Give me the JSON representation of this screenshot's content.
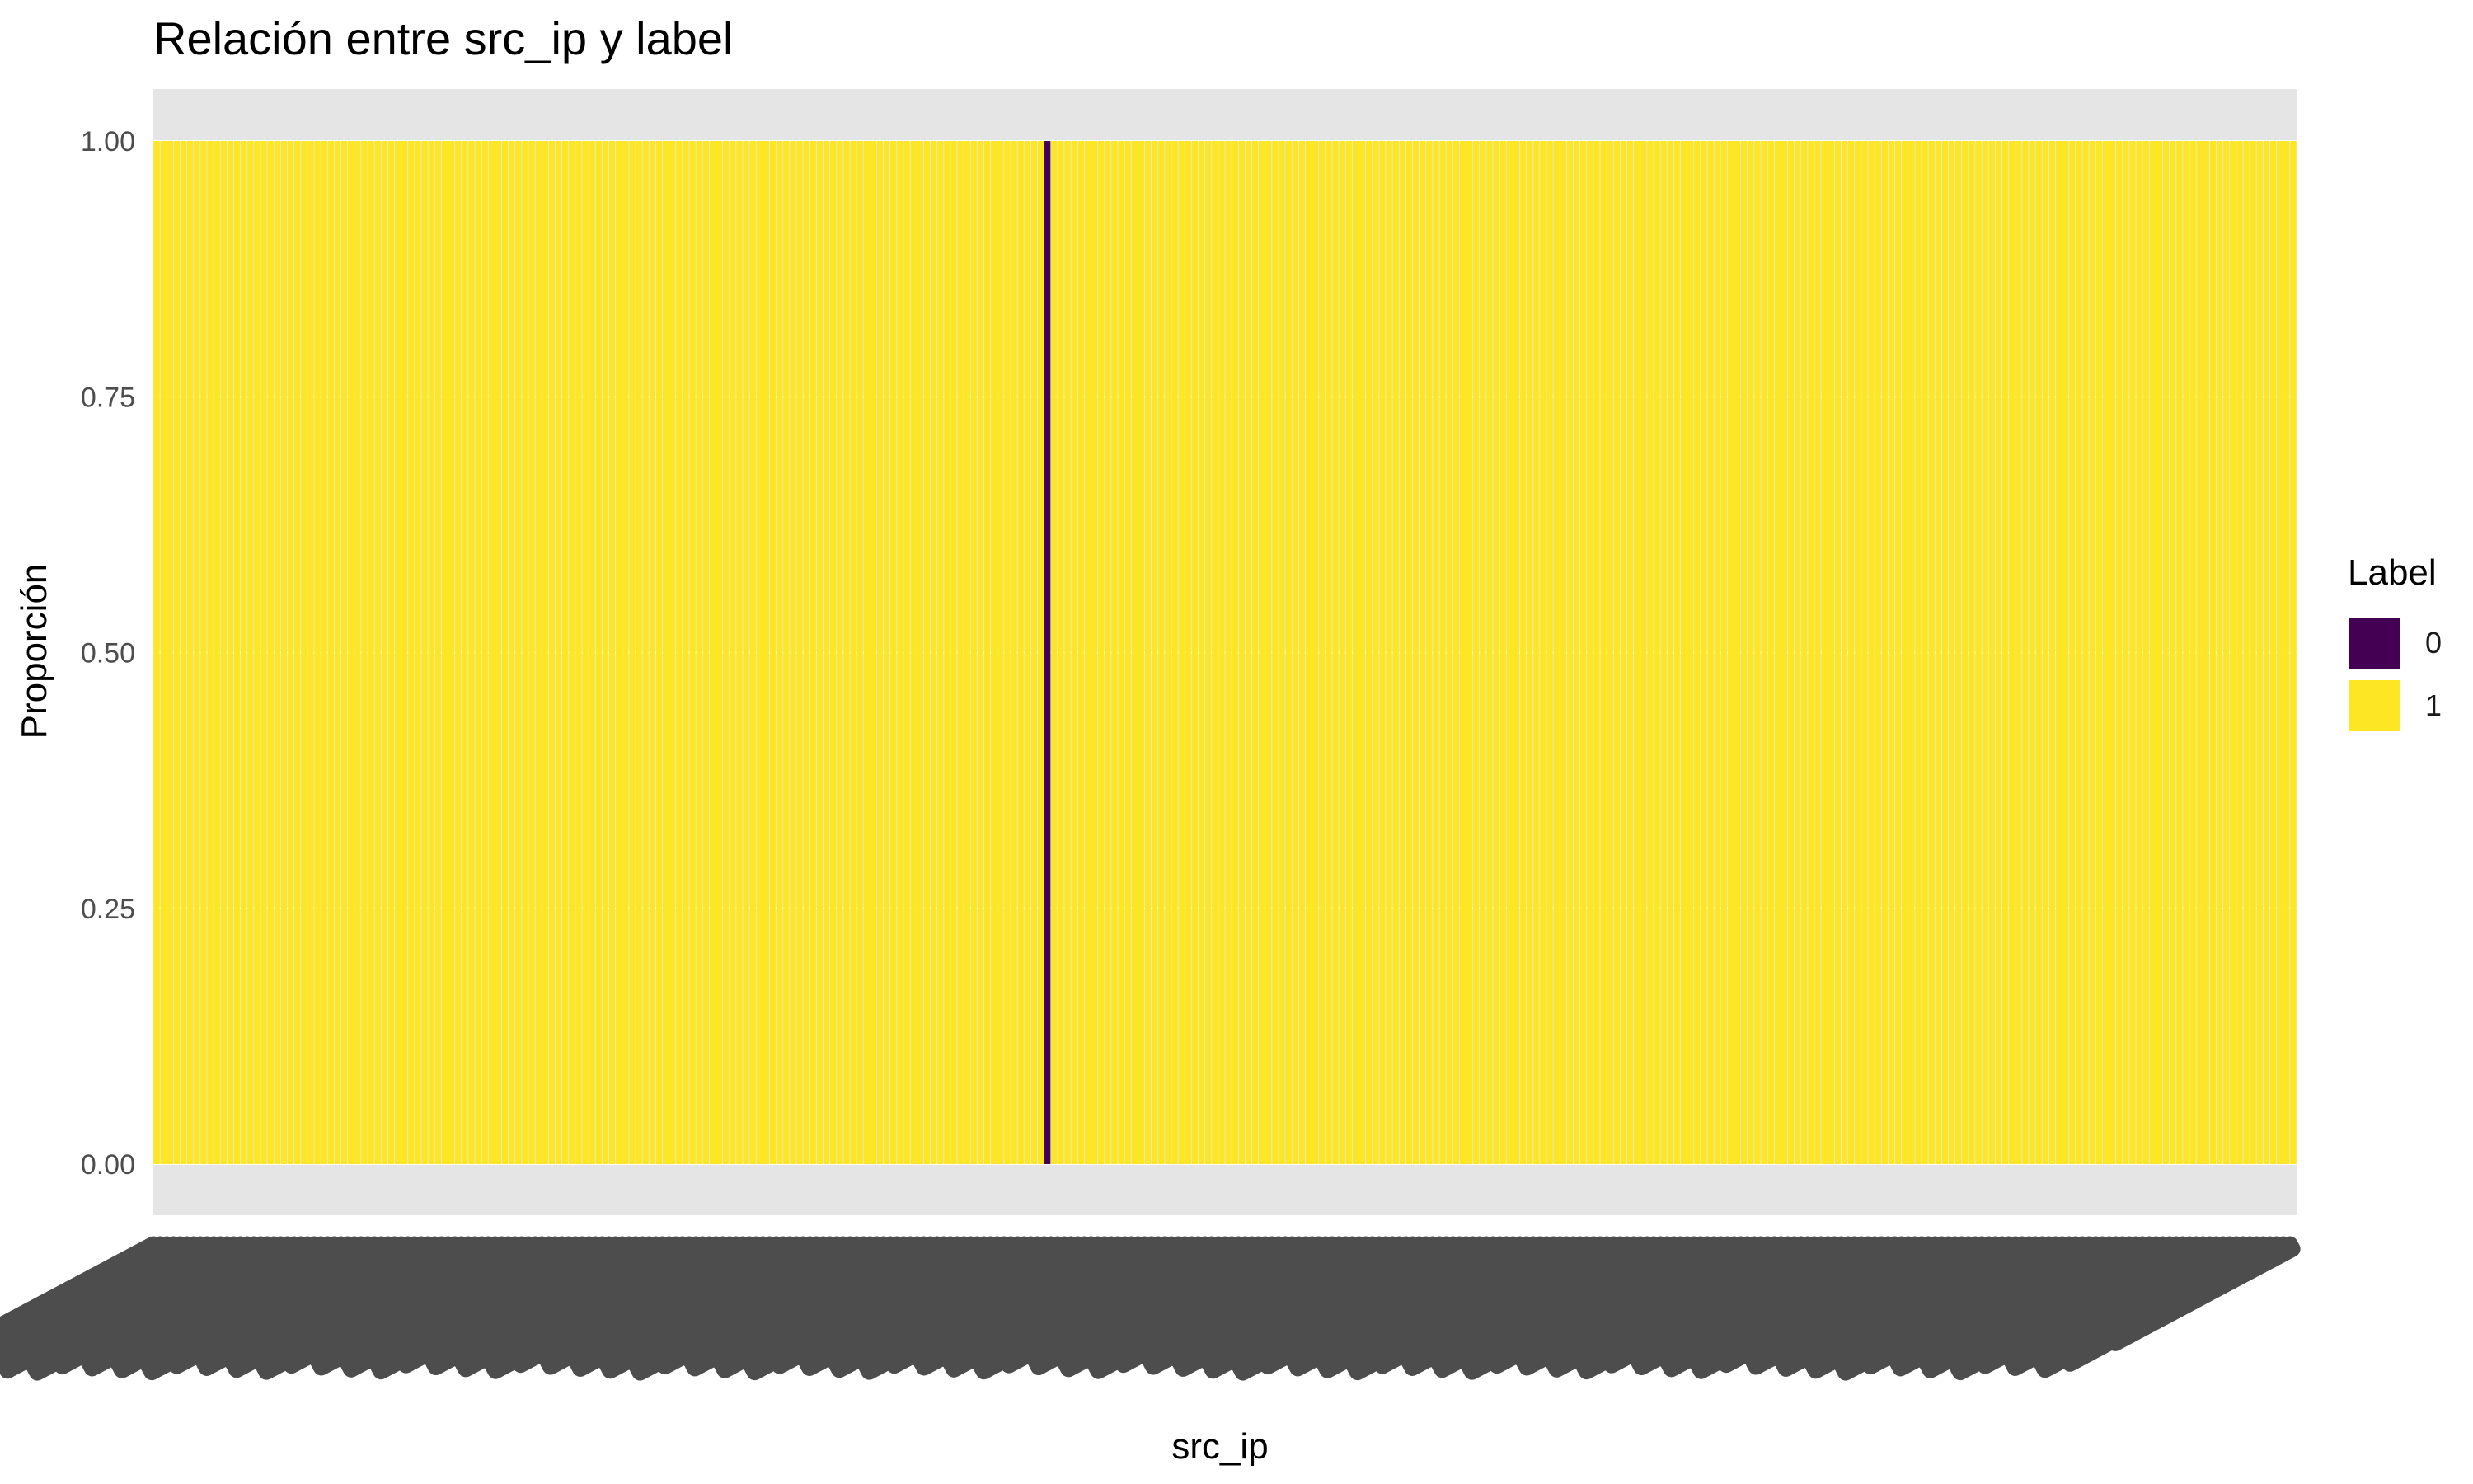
{
  "chart_data": {
    "type": "bar",
    "stacked": true,
    "title": "Relación entre src_ip y label",
    "xlabel": "src_ip",
    "ylabel": "Proporción",
    "ylim": [
      0,
      1
    ],
    "yticks": [
      "0.00",
      "0.25",
      "0.50",
      "0.75",
      "1.00"
    ],
    "x_categories_count": 320,
    "x_tick_labels_note": "",
    "series": [
      {
        "name": "0",
        "color": "#440154",
        "nonzero_category_indexes": [
          133
        ],
        "value_at_nonzero": 1.0,
        "value_elsewhere": 0.0
      },
      {
        "name": "1",
        "color": "#FDE725",
        "value_elsewhere": 1.0,
        "value_at_nonzero_indexes_of_0": 0.0
      }
    ],
    "legend": {
      "title": "Label",
      "position": "right",
      "entries": [
        "0",
        "1"
      ]
    },
    "grid": true,
    "panel_background": "#E5E5E5",
    "x_tick_label_color": "#4D4D4D"
  }
}
